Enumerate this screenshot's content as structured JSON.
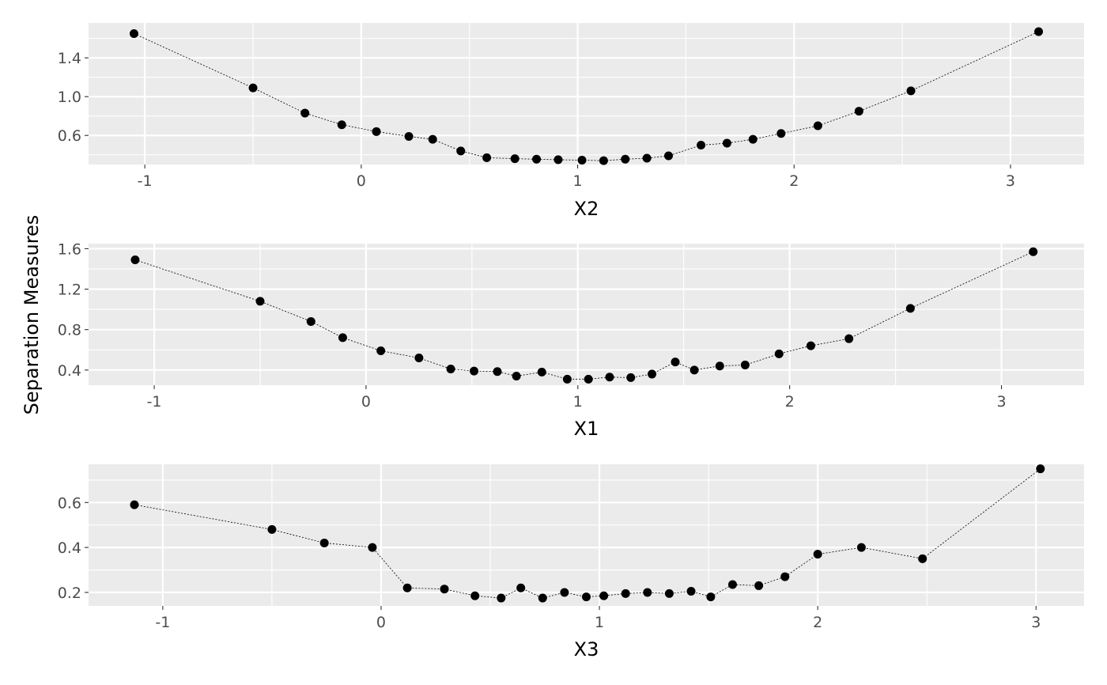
{
  "ylabel": "Separation Measures",
  "chart_data": [
    {
      "type": "line",
      "xlabel": "X2",
      "ylabel": "Separation Measures",
      "xlim": [
        -1.26,
        3.34
      ],
      "ylim": [
        0.3,
        1.76
      ],
      "xticks": [
        -1,
        0,
        1,
        2,
        3
      ],
      "xtick_labels": [
        "-1",
        "0",
        "1",
        "2",
        "3"
      ],
      "yticks": [
        0.6,
        1.0,
        1.4
      ],
      "ytick_labels": [
        "0.6",
        "1.0",
        "1.4"
      ],
      "grid": true,
      "markers": "points",
      "x": [
        -1.05,
        -0.5,
        -0.26,
        -0.09,
        0.07,
        0.22,
        0.33,
        0.46,
        0.58,
        0.71,
        0.81,
        0.91,
        1.02,
        1.12,
        1.22,
        1.32,
        1.42,
        1.57,
        1.69,
        1.81,
        1.94,
        2.11,
        2.3,
        2.54,
        3.13
      ],
      "y": [
        1.65,
        1.09,
        0.83,
        0.71,
        0.64,
        0.59,
        0.56,
        0.44,
        0.37,
        0.36,
        0.355,
        0.35,
        0.345,
        0.34,
        0.355,
        0.365,
        0.39,
        0.5,
        0.52,
        0.56,
        0.62,
        0.7,
        0.85,
        1.06,
        1.67
      ]
    },
    {
      "type": "line",
      "xlabel": "X1",
      "ylabel": "Separation Measures",
      "xlim": [
        -1.31,
        3.39
      ],
      "ylim": [
        0.25,
        1.65
      ],
      "xticks": [
        -1,
        0,
        1,
        2,
        3
      ],
      "xtick_labels": [
        "-1",
        "0",
        "1",
        "2",
        "3"
      ],
      "yticks": [
        0.4,
        0.8,
        1.2,
        1.6
      ],
      "ytick_labels": [
        "0.4",
        "0.8",
        "1.2",
        "1.6"
      ],
      "grid": true,
      "markers": "points",
      "x": [
        -1.09,
        -0.5,
        -0.26,
        -0.11,
        0.07,
        0.25,
        0.4,
        0.51,
        0.62,
        0.71,
        0.83,
        0.95,
        1.05,
        1.15,
        1.25,
        1.35,
        1.46,
        1.55,
        1.67,
        1.79,
        1.95,
        2.1,
        2.28,
        2.57,
        3.15
      ],
      "y": [
        1.49,
        1.08,
        0.88,
        0.72,
        0.59,
        0.52,
        0.41,
        0.39,
        0.385,
        0.34,
        0.38,
        0.31,
        0.31,
        0.33,
        0.325,
        0.36,
        0.48,
        0.4,
        0.44,
        0.45,
        0.56,
        0.64,
        0.71,
        1.01,
        1.57
      ]
    },
    {
      "type": "line",
      "xlabel": "X3",
      "ylabel": "Separation Measures",
      "xlim": [
        -1.34,
        3.22
      ],
      "ylim": [
        0.14,
        0.77
      ],
      "xticks": [
        -1,
        0,
        1,
        2,
        3
      ],
      "xtick_labels": [
        "-1",
        "0",
        "1",
        "2",
        "3"
      ],
      "yticks": [
        0.2,
        0.4,
        0.6
      ],
      "ytick_labels": [
        "0.2",
        "0.4",
        "0.6"
      ],
      "grid": true,
      "markers": "points",
      "x": [
        -1.13,
        -0.5,
        -0.26,
        -0.04,
        0.12,
        0.29,
        0.43,
        0.55,
        0.64,
        0.74,
        0.84,
        0.94,
        1.02,
        1.12,
        1.22,
        1.32,
        1.42,
        1.51,
        1.61,
        1.73,
        1.85,
        2.0,
        2.2,
        2.48,
        3.02
      ],
      "y": [
        0.59,
        0.48,
        0.42,
        0.4,
        0.22,
        0.215,
        0.185,
        0.175,
        0.22,
        0.175,
        0.2,
        0.18,
        0.185,
        0.195,
        0.2,
        0.195,
        0.205,
        0.18,
        0.235,
        0.23,
        0.27,
        0.37,
        0.4,
        0.35,
        0.75
      ]
    }
  ]
}
